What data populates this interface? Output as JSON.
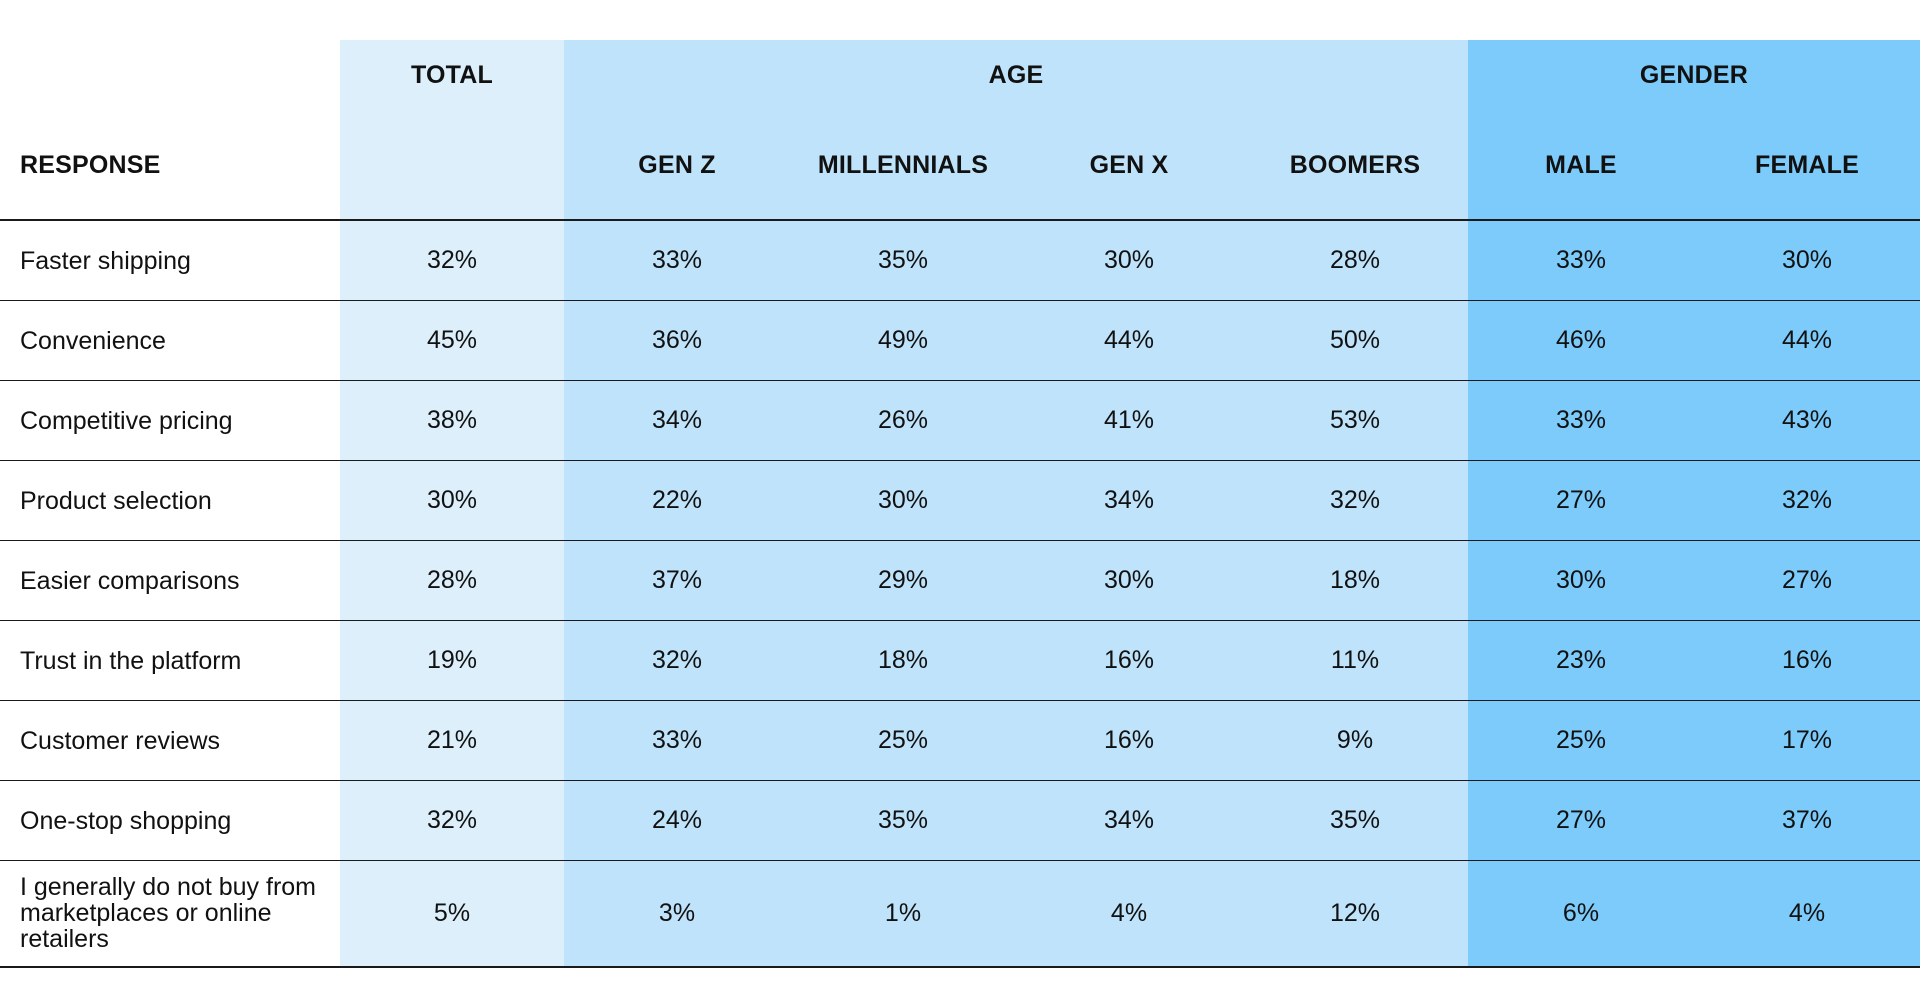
{
  "colors": {
    "total_band": "#dceffb",
    "age_band": "#bfe3fa",
    "gender_band": "#7ccbfa",
    "rule": "#1a1a1a"
  },
  "chart_data": {
    "type": "table",
    "row_header": "RESPONSE",
    "groups": [
      {
        "label": "TOTAL",
        "columns": [
          ""
        ]
      },
      {
        "label": "AGE",
        "columns": [
          "GEN Z",
          "MILLENNIALS",
          "GEN X",
          "BOOMERS"
        ]
      },
      {
        "label": "GENDER",
        "columns": [
          "MALE",
          "FEMALE"
        ]
      }
    ],
    "rows": [
      {
        "label": "Faster shipping",
        "values": [
          "32%",
          "33%",
          "35%",
          "30%",
          "28%",
          "33%",
          "30%"
        ]
      },
      {
        "label": "Convenience",
        "values": [
          "45%",
          "36%",
          "49%",
          "44%",
          "50%",
          "46%",
          "44%"
        ]
      },
      {
        "label": "Competitive pricing",
        "values": [
          "38%",
          "34%",
          "26%",
          "41%",
          "53%",
          "33%",
          "43%"
        ]
      },
      {
        "label": "Product selection",
        "values": [
          "30%",
          "22%",
          "30%",
          "34%",
          "32%",
          "27%",
          "32%"
        ]
      },
      {
        "label": "Easier comparisons",
        "values": [
          "28%",
          "37%",
          "29%",
          "30%",
          "18%",
          "30%",
          "27%"
        ]
      },
      {
        "label": "Trust in the platform",
        "values": [
          "19%",
          "32%",
          "18%",
          "16%",
          "11%",
          "23%",
          "16%"
        ]
      },
      {
        "label": "Customer reviews",
        "values": [
          "21%",
          "33%",
          "25%",
          "16%",
          "9%",
          "25%",
          "17%"
        ]
      },
      {
        "label": "One-stop shopping",
        "values": [
          "32%",
          "24%",
          "35%",
          "34%",
          "35%",
          "27%",
          "37%"
        ]
      },
      {
        "label": "I generally do not buy from marketplaces or online retailers",
        "values": [
          "5%",
          "3%",
          "1%",
          "4%",
          "12%",
          "6%",
          "4%"
        ]
      }
    ]
  }
}
